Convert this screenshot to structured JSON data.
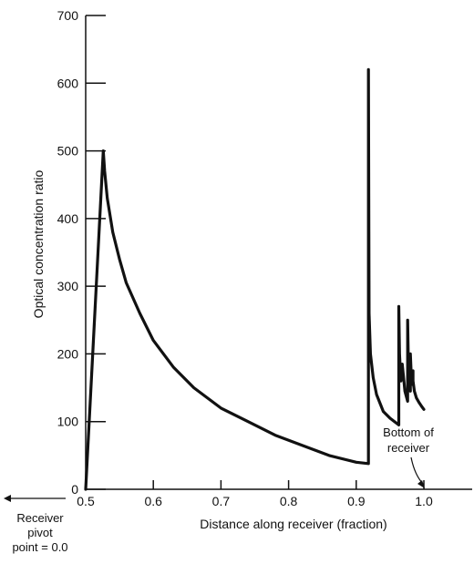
{
  "chart_data": {
    "type": "line",
    "title": "",
    "xlabel": "Distance along receiver (fraction)",
    "ylabel": "Optical concentration ratio",
    "xlim": [
      0.5,
      1.0
    ],
    "ylim": [
      0,
      700
    ],
    "x_ticks": [
      "0.5",
      "0.6",
      "0.7",
      "0.8",
      "0.9",
      "1.0"
    ],
    "y_ticks": [
      "0",
      "100",
      "200",
      "300",
      "400",
      "500",
      "600",
      "700"
    ],
    "grid": false,
    "series": [
      {
        "x": [
          0.5,
          0.526,
          0.528,
          0.532,
          0.54,
          0.55,
          0.56,
          0.58,
          0.6,
          0.63,
          0.66,
          0.7,
          0.74,
          0.78,
          0.82,
          0.86,
          0.9,
          0.918,
          0.918,
          0.919,
          0.921,
          0.925,
          0.93,
          0.94,
          0.95,
          0.963,
          0.963,
          0.964,
          0.966,
          0.968,
          0.972,
          0.976,
          0.976,
          0.977,
          0.98,
          0.98,
          0.982,
          0.984,
          0.984,
          0.986,
          0.989,
          0.993,
          0.997,
          1.0
        ],
        "y": [
          0,
          500,
          470,
          430,
          380,
          340,
          305,
          260,
          220,
          180,
          150,
          120,
          100,
          80,
          65,
          50,
          40,
          38,
          620,
          260,
          200,
          165,
          140,
          115,
          105,
          95,
          270,
          200,
          160,
          185,
          145,
          130,
          250,
          195,
          145,
          200,
          155,
          175,
          160,
          145,
          135,
          128,
          122,
          118
        ]
      }
    ],
    "annotations": {
      "left_arrow_label": "Receiver pivot point = 0.0",
      "bottom_label": "Bottom of receiver",
      "bottom_x": 1.0
    }
  }
}
